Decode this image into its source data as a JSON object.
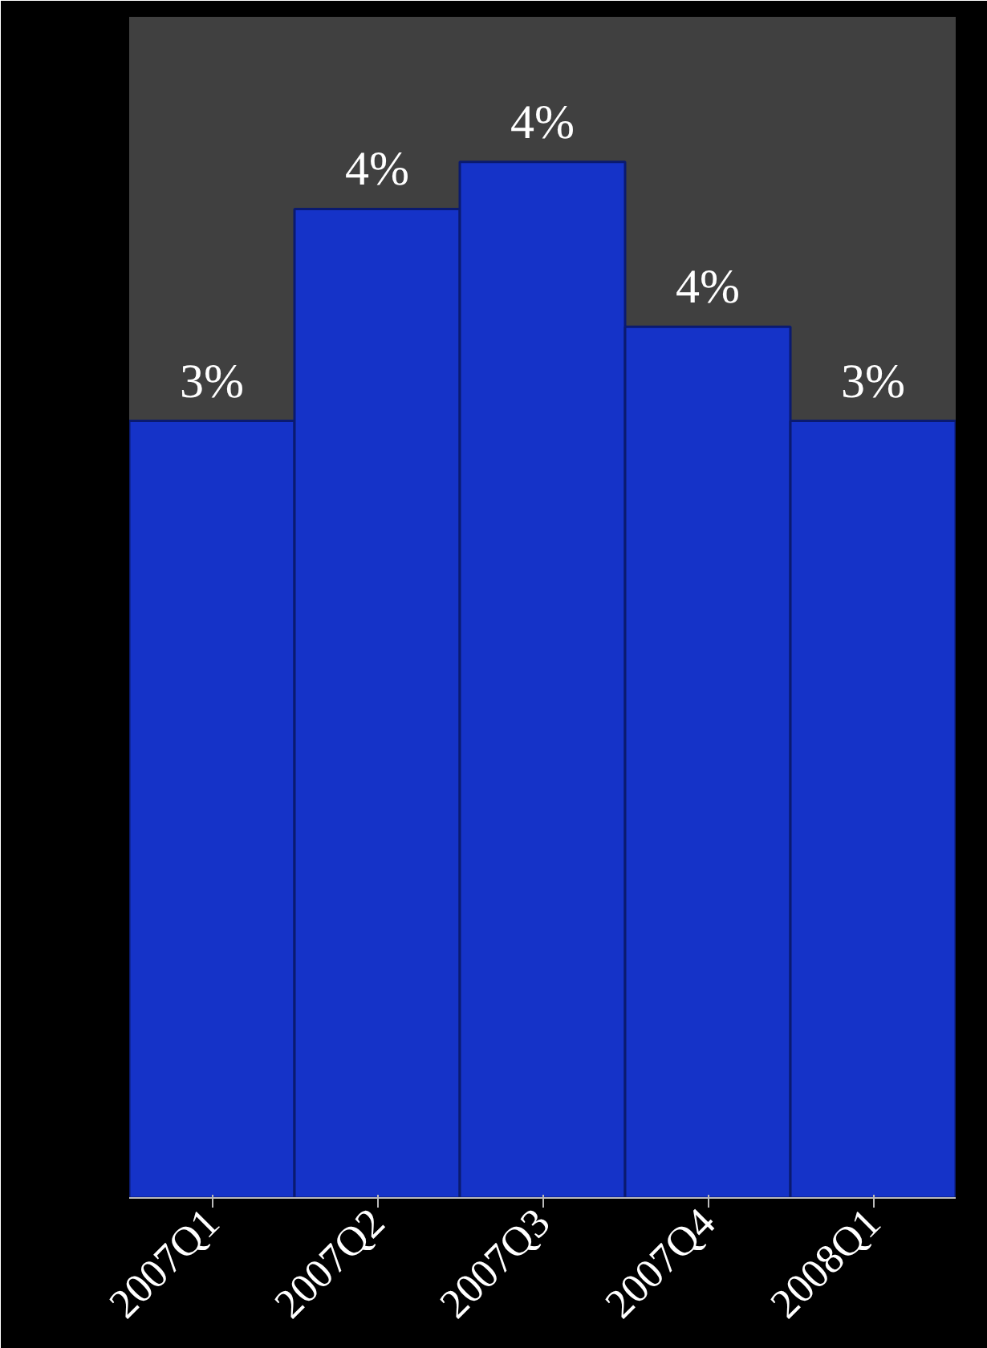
{
  "chart_data": {
    "type": "bar",
    "categories": [
      "2007Q1",
      "2007Q2",
      "2007Q3",
      "2007Q4",
      "2008Q1"
    ],
    "values": [
      3.3,
      4.2,
      4.4,
      3.7,
      3.3
    ],
    "value_labels": [
      "3%",
      "4%",
      "4%",
      "4%",
      "3%"
    ],
    "color": "#1533c8",
    "grid": false,
    "tick_labels": "x"
  }
}
